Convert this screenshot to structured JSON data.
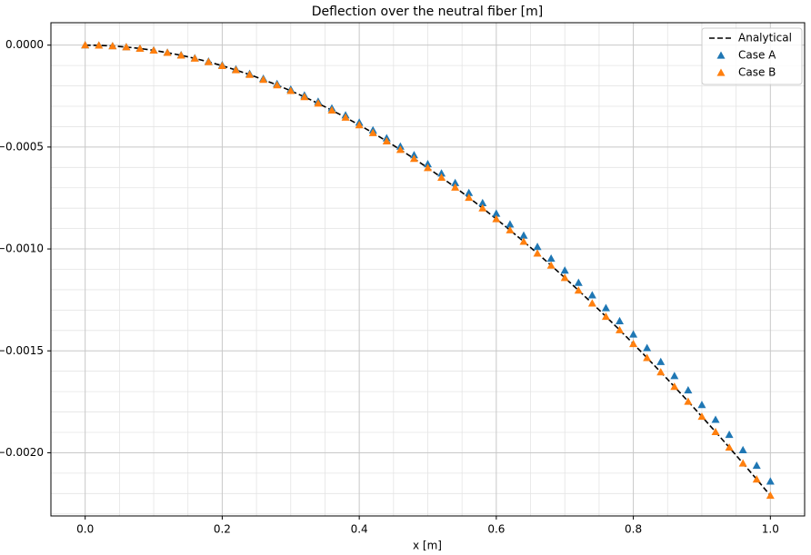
{
  "chart_data": {
    "type": "line-scatter",
    "title": "Deflection over the neutral fiber [m]",
    "x_label": "x [m]",
    "x": [
      0,
      0.02,
      0.04,
      0.06,
      0.08,
      0.1,
      0.12,
      0.14,
      0.16,
      0.18,
      0.2,
      0.22,
      0.24,
      0.26,
      0.28,
      0.3,
      0.32,
      0.34,
      0.36,
      0.38,
      0.4,
      0.42,
      0.44,
      0.46,
      0.48,
      0.5,
      0.52,
      0.54,
      0.56,
      0.58,
      0.6,
      0.62,
      0.64,
      0.66,
      0.68,
      0.7,
      0.72,
      0.74,
      0.76,
      0.78,
      0.8,
      0.82,
      0.84,
      0.86,
      0.88,
      0.9,
      0.92,
      0.94,
      0.96,
      0.98,
      1.0
    ],
    "series": [
      {
        "name": "Analytical",
        "kind": "line",
        "color": "#000000",
        "values": [
          0,
          -1e-06,
          -4.1e-06,
          -9.3e-06,
          -1.65e-05,
          -2.57e-05,
          -3.69e-05,
          -5e-05,
          -6.51e-05,
          -8.22e-05,
          -0.0001011,
          -0.000122,
          -0.0001447,
          -0.0001693,
          -0.0001957,
          -0.000224,
          -0.000254,
          -0.0002858,
          -0.0003194,
          -0.0003547,
          -0.0003918,
          -0.0004305,
          -0.000471,
          -0.0005131,
          -0.0005569,
          -0.0006022,
          -0.0006492,
          -0.0006978,
          -0.000748,
          -0.0007996,
          -0.0008529,
          -0.0009076,
          -0.0009639,
          -0.0010216,
          -0.0010808,
          -0.0011414,
          -0.0012034,
          -0.0012668,
          -0.0013316,
          -0.0013978,
          -0.0014653,
          -0.0015342,
          -0.0016043,
          -0.0016757,
          -0.0017484,
          -0.0018223,
          -0.0018975,
          -0.0019738,
          -0.0020514,
          -0.0021301,
          -0.00221
        ]
      },
      {
        "name": "Case A",
        "kind": "scatter",
        "color": "#1f77b4",
        "values": [
          0,
          -1e-06,
          -4e-06,
          -9e-06,
          -1.6e-05,
          -2.49e-05,
          -3.57e-05,
          -4.84e-05,
          -6.31e-05,
          -7.96e-05,
          -9.79e-05,
          -0.0001181,
          -0.0001401,
          -0.0001639,
          -0.0001895,
          -0.0002169,
          -0.000246,
          -0.0002768,
          -0.0003093,
          -0.0003435,
          -0.0003794,
          -0.0004169,
          -0.0004561,
          -0.0004968,
          -0.0005392,
          -0.0005832,
          -0.0006286,
          -0.0006757,
          -0.0007243,
          -0.0007743,
          -0.0008259,
          -0.0008789,
          -0.0009333,
          -0.0009892,
          -0.0010465,
          -0.0011052,
          -0.0011653,
          -0.0012267,
          -0.0012895,
          -0.0013535,
          -0.0014189,
          -0.0014856,
          -0.0015535,
          -0.0016226,
          -0.001693,
          -0.0017646,
          -0.0018374,
          -0.0019113,
          -0.0019864,
          -0.0020627,
          -0.00214
        ]
      },
      {
        "name": "Case B",
        "kind": "scatter",
        "color": "#ff7f0e",
        "values": [
          0,
          -1e-06,
          -4.1e-06,
          -9.3e-06,
          -1.65e-05,
          -2.57e-05,
          -3.69e-05,
          -5e-05,
          -6.51e-05,
          -8.22e-05,
          -0.0001011,
          -0.000122,
          -0.0001447,
          -0.0001693,
          -0.0001957,
          -0.000224,
          -0.000254,
          -0.0002858,
          -0.0003194,
          -0.0003547,
          -0.0003918,
          -0.0004305,
          -0.000471,
          -0.0005131,
          -0.0005569,
          -0.0006022,
          -0.0006492,
          -0.0006978,
          -0.000748,
          -0.0007996,
          -0.0008529,
          -0.0009076,
          -0.0009639,
          -0.0010216,
          -0.0010808,
          -0.0011414,
          -0.0012034,
          -0.0012668,
          -0.0013316,
          -0.0013978,
          -0.0014653,
          -0.0015342,
          -0.0016043,
          -0.0016757,
          -0.0017484,
          -0.0018223,
          -0.0018975,
          -0.0019738,
          -0.0020514,
          -0.0021301,
          -0.00221
        ]
      }
    ],
    "xlim": [
      -0.05,
      1.05
    ],
    "ylim": [
      -0.00231,
      0.00011
    ],
    "xticks": [
      {
        "value": 0,
        "label": "0.0"
      },
      0.2,
      0.4,
      0.6,
      0.8,
      {
        "value": 1,
        "label": "1.0"
      }
    ],
    "yticks": [
      {
        "value": 0,
        "label": "0.0000"
      },
      {
        "value": -0.0005,
        "label": "−0.0005"
      },
      {
        "value": -0.001,
        "label": "−0.0010"
      },
      {
        "value": -0.0015,
        "label": "−0.0015"
      },
      {
        "value": -0.002,
        "label": "−0.0020"
      }
    ],
    "xminor": [
      0.05,
      0.1,
      0.15,
      0.25,
      0.3,
      0.35,
      0.45,
      0.5,
      0.55,
      0.65,
      0.7,
      0.75,
      0.85,
      0.9,
      0.95
    ],
    "yminor": [
      0.0001,
      -0.0001,
      -0.0002,
      -0.0003,
      -0.0004,
      -0.0006,
      -0.0007,
      -0.0008,
      -0.0009,
      -0.0011,
      -0.0012,
      -0.0013,
      -0.0014,
      -0.0016,
      -0.0017,
      -0.0018,
      -0.0019,
      -0.0021,
      -0.0022,
      -0.0023
    ],
    "grid": true,
    "legend": "upper right"
  }
}
